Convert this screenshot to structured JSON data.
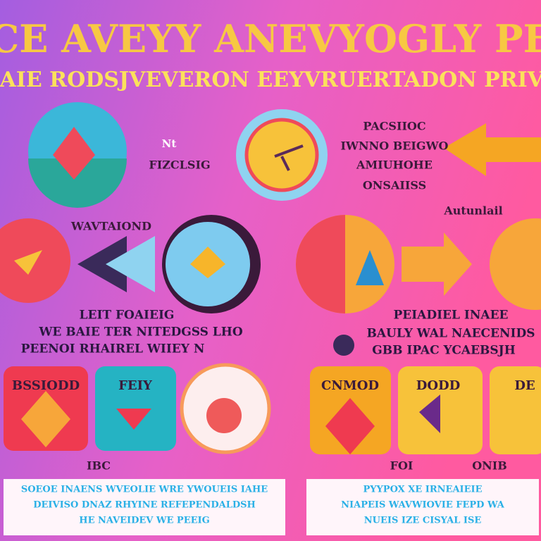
{
  "header": {
    "title": "ICE AVEYY ANEVYOGLY PEI",
    "subtitle": "BAIE RODSJVEVERON EEYVRUERTADON PRIVZ"
  },
  "top": {
    "left_labels": [
      "Nt",
      "FIZCLSIG"
    ],
    "right_labels": [
      "PACSIIOC",
      "IWNNO BEIGWO",
      "AMIUHOHE",
      "ONSAIISS"
    ],
    "side_label": "Autunlail"
  },
  "middle": {
    "left_label": "WAVTAIOND",
    "left_caption": [
      "LEIT FOAIEIG",
      "WE BAIE TER NITEDGSS LHO",
      "PEENOI RHAIREL WIIEY N"
    ],
    "right_caption": [
      "PEIADIEL INAEE",
      "BAULY WAL NAECENIDS",
      "GBB IPAC YCAEBSJH"
    ]
  },
  "cards": [
    {
      "label": "BSSIODD"
    },
    {
      "label": "FEIY"
    },
    {
      "label": "CNMOD"
    },
    {
      "label": "DODD"
    },
    {
      "label": "DE"
    }
  ],
  "card_captions": [
    "IBC",
    "FOI",
    "ONIB"
  ],
  "footer": {
    "left": [
      "SOEOE INAENS WVEOLIE WRE YWOUEIS IAHE",
      "DEIVISO DNAZ RHYINE REFEPENDALDSH",
      "HE NAVEIDEV WE PEEIG"
    ],
    "right": [
      "PYYPOX XE IRNEAIEIE",
      "NIAPEIS WAVWIOVIE FEPD WA",
      "NUEIS IZE CISYAL ISE"
    ]
  }
}
